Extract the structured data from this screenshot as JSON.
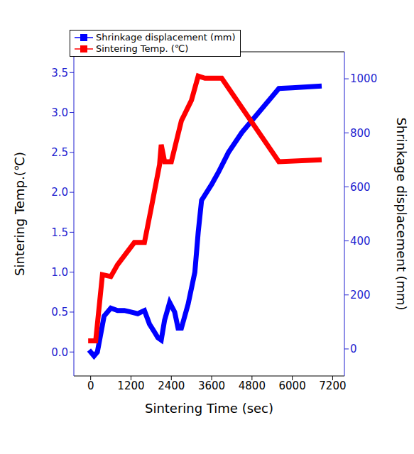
{
  "chart_data": {
    "type": "line",
    "xlabel": "Sintering Time (sec)",
    "ylabel": "Sintering Temp.(℃)",
    "y2label": "Shrinkage displacement (mm)",
    "xlim": [
      -500,
      7550
    ],
    "xticks": [
      0,
      1200,
      2400,
      3600,
      4800,
      6000,
      7200
    ],
    "ylim": [
      -0.3,
      3.76
    ],
    "yticks": [
      {
        "value": 0,
        "label": "0.0"
      },
      {
        "value": 0.5,
        "label": "0.5"
      },
      {
        "value": 1,
        "label": "1.0"
      },
      {
        "value": 1.5,
        "label": "1.5"
      },
      {
        "value": 2,
        "label": "2.0"
      },
      {
        "value": 2.5,
        "label": "2.5"
      },
      {
        "value": 3,
        "label": "3.0"
      },
      {
        "value": 3.5,
        "label": "3.5"
      }
    ],
    "y2lim": [
      -100,
      1100
    ],
    "y2ticks": [
      0,
      200,
      400,
      600,
      800,
      1000
    ],
    "legend": "upper left",
    "series": [
      {
        "name": "Shrinkage displacement (mm)",
        "color": "#0000ff",
        "marker": "square",
        "x": [
          0,
          100,
          200,
          400,
          600,
          800,
          1000,
          1200,
          1400,
          1600,
          1750,
          1900,
          2000,
          2100,
          2200,
          2350,
          2500,
          2600,
          2700,
          2900,
          3100,
          3200,
          3300,
          3600,
          3800,
          4100,
          4500,
          5000,
          5400,
          5600,
          6000,
          6800
        ],
        "values": [
          0.0,
          -0.05,
          0.0,
          0.45,
          0.55,
          0.52,
          0.52,
          0.5,
          0.48,
          0.52,
          0.35,
          0.25,
          0.18,
          0.15,
          0.4,
          0.62,
          0.5,
          0.3,
          0.3,
          0.6,
          1.0,
          1.5,
          1.9,
          2.1,
          2.25,
          2.5,
          2.75,
          3.0,
          3.2,
          3.3,
          3.31,
          3.33
        ]
      },
      {
        "name": "Sintering Temp. (℃)",
        "color": "#ff0000",
        "marker": "square",
        "axis": "y2",
        "x": [
          0,
          150,
          350,
          600,
          800,
          1300,
          1600,
          1800,
          2050,
          2100,
          2200,
          2400,
          2700,
          3000,
          3200,
          3400,
          3900,
          5600,
          6800
        ],
        "values": [
          30,
          30,
          275,
          268,
          312,
          394,
          394,
          520,
          682,
          756,
          693,
          693,
          845,
          921,
          1010,
          1002,
          1002,
          693,
          700
        ]
      }
    ]
  }
}
